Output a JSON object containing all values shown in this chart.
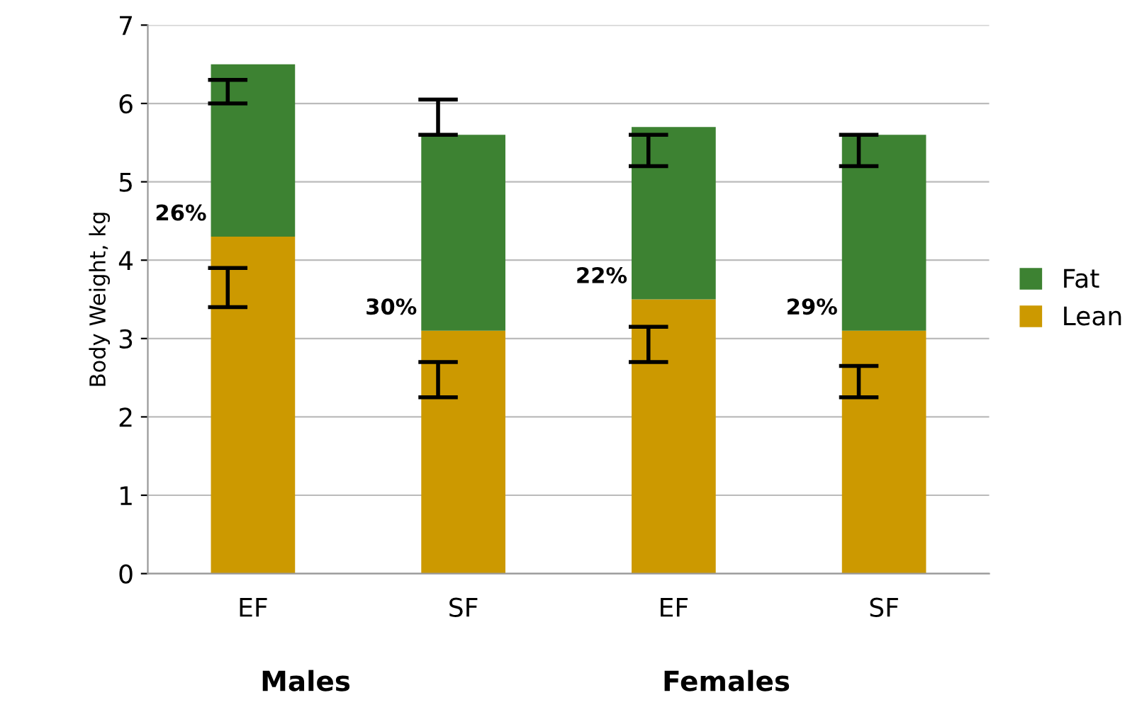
{
  "chart_data": {
    "type": "bar",
    "stacked": true,
    "ylabel": "Body Weight, kg",
    "categories": [
      "EF",
      "SF",
      "EF",
      "SF"
    ],
    "series": [
      {
        "name": "Lean",
        "color": "#cc9900",
        "values": [
          4.3,
          3.1,
          3.5,
          3.1
        ],
        "errors": [
          [
            3.4,
            3.9
          ],
          [
            2.25,
            2.7
          ],
          [
            2.7,
            3.15
          ],
          [
            2.25,
            2.65
          ]
        ]
      },
      {
        "name": "Fat",
        "color": "#3d8232",
        "values": [
          2.2,
          2.5,
          2.2,
          2.5
        ],
        "errors": [
          [
            6.0,
            6.3
          ],
          [
            5.6,
            6.05
          ],
          [
            5.2,
            5.6
          ],
          [
            5.2,
            5.6
          ]
        ]
      }
    ],
    "ylim": [
      0,
      7
    ],
    "yticks": [
      0,
      1,
      2,
      3,
      4,
      5,
      6,
      7
    ],
    "grid": "y",
    "legend": "right",
    "annotations": [
      "26%",
      "30%",
      "22%",
      "29%",
      "Males",
      "Females"
    ]
  }
}
